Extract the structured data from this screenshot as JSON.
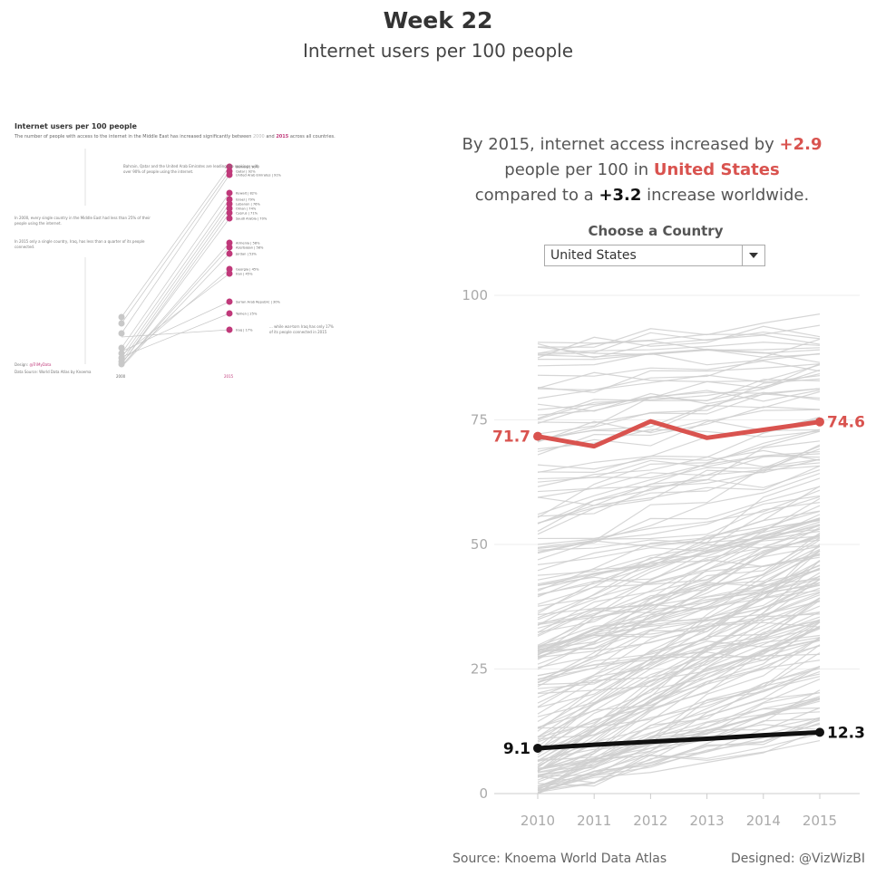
{
  "header": {
    "title": "Week 22",
    "subtitle": "Internet users per 100 people"
  },
  "thumbnail": {
    "title": "Internet users per 100 people",
    "description_pre": "The number of people with access to the internet in the Middle East has increased significantly between ",
    "year_a": "2000",
    "description_mid": " and ",
    "year_b": "2015",
    "description_post": " across all countries.",
    "note_top": "Bahrain, Qatar and the United Arab Emirates are leading the rankings with over 90% of people using the internet.",
    "note_left_1": "In 2000, every single country in the Middle East had less than 25% of their people using the internet.",
    "note_left_2": "In 2015 only a single country, Iraq, has less than a quarter of its people connected.",
    "note_bottom": "... while war-torn Iraq has only 17% of its people connected in 2015",
    "design_label": "Design: ",
    "design_handle": "@TriMyData",
    "source": "Data Source: World Data Atlas by Knoema",
    "axis_left": "2000",
    "axis_right": "2015",
    "labels": [
      "Bahrain | 93%",
      "Qatar | 92%",
      "United Arab Emirates | 91%",
      "Kuwait | 82%",
      "Israel | 79%",
      "Lebanon | 76%",
      "Oman | 74%",
      "Cyprus | 71%",
      "Saudi Arabia | 70%",
      "Armenia | 58%",
      "Azerbaijan | 58%",
      "Jordan | 53%",
      "Georgia | 45%",
      "Iran | 45%",
      "Syrian Arab Republic | 30%",
      "Yemen | 25%",
      "Iraq | 17%"
    ]
  },
  "headline": {
    "line1_pre": "By 2015, internet access increased by ",
    "change_country": "+2.9",
    "line2_pre": "people per 100 in ",
    "country": "United States",
    "line3_pre": "compared to a ",
    "change_world": "+3.2",
    "line3_post": " increase worldwide."
  },
  "selector": {
    "label": "Choose a Country",
    "value": "United States"
  },
  "footer": {
    "source": "Source: Knoema World Data Atlas",
    "designed": "Designed: @VizWizBI"
  },
  "colors": {
    "highlight": "#d9534f",
    "world": "#111111",
    "background_lines": "#cfcfcf",
    "thumb_accent": "#c0397a"
  },
  "chart_data": {
    "type": "line",
    "x": [
      2010,
      2011,
      2012,
      2013,
      2014,
      2015
    ],
    "ylim": [
      0,
      100
    ],
    "yticks": [
      0,
      25,
      50,
      75,
      100
    ],
    "grid": true,
    "series": [
      {
        "name": "United States",
        "values": [
          71.7,
          69.7,
          74.7,
          71.4,
          73.0,
          74.6
        ],
        "start_label": "71.7",
        "end_label": "74.6"
      },
      {
        "name": "",
        "values": [
          9.1,
          9.8,
          10.4,
          11.0,
          11.7,
          12.3
        ],
        "start_label": "9.1",
        "end_label": "12.3"
      }
    ]
  }
}
